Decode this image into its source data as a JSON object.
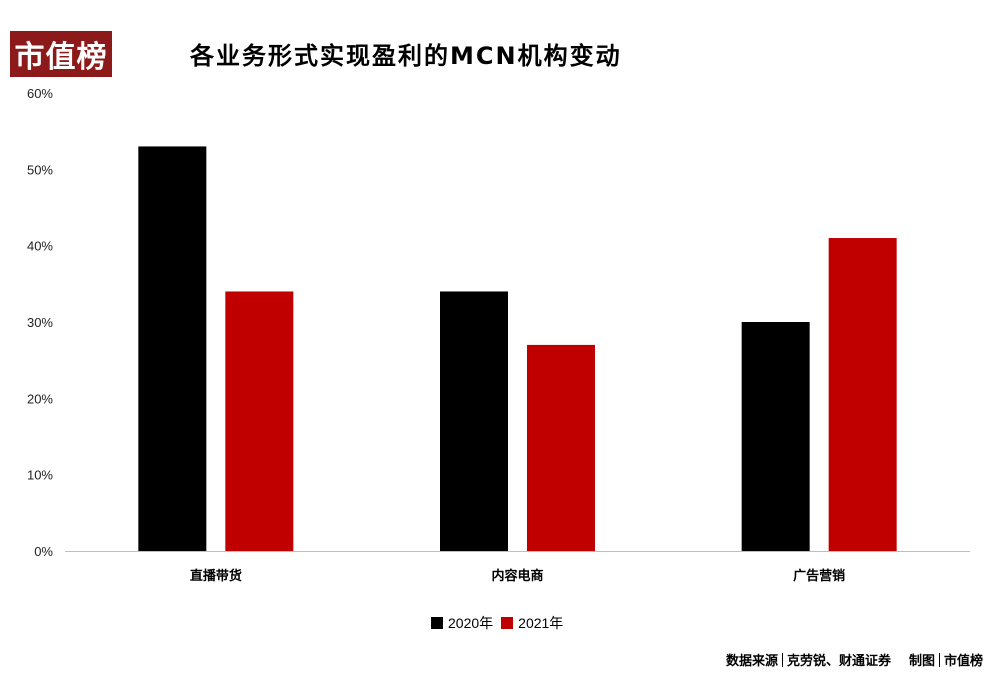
{
  "logo_text": "市值榜",
  "chart_data": {
    "type": "bar",
    "title": "各业务形式实现盈利的MCN机构变动",
    "categories": [
      "直播带货",
      "内容电商",
      "广告营销"
    ],
    "series": [
      {
        "name": "2020年",
        "values": [
          53,
          34,
          30
        ],
        "color": "#000000"
      },
      {
        "name": "2021年",
        "values": [
          34,
          27,
          41
        ],
        "color": "#c00000"
      }
    ],
    "ylim": [
      0,
      60
    ],
    "yticks": [
      "0%",
      "10%",
      "20%",
      "30%",
      "40%",
      "50%",
      "60%"
    ],
    "grid": false,
    "legend": "bottom"
  },
  "source": {
    "label": "数据来源",
    "value": "克劳锐、财通证券",
    "made_label": "制图",
    "made_value": "市值榜"
  }
}
